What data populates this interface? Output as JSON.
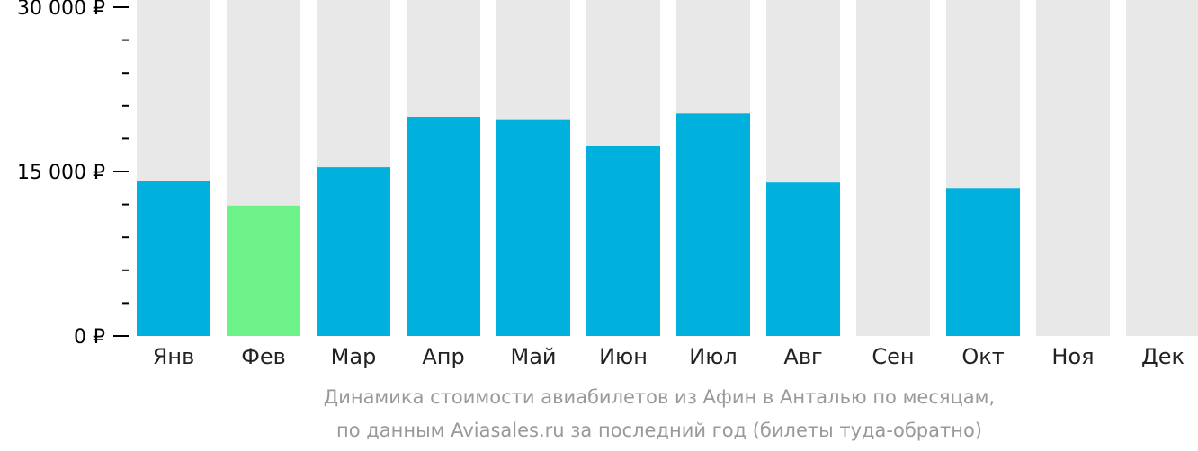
{
  "chart_data": {
    "type": "bar",
    "categories": [
      "Янв",
      "Фев",
      "Мар",
      "Апр",
      "Май",
      "Июн",
      "Июл",
      "Авг",
      "Сен",
      "Окт",
      "Ноя",
      "Дек"
    ],
    "values": [
      14100,
      11900,
      15400,
      20000,
      19700,
      17300,
      20300,
      14000,
      null,
      13500,
      null,
      null
    ],
    "highlight": [
      "normal",
      "lowest",
      "normal",
      "normal",
      "normal",
      "normal",
      "normal",
      "normal",
      "normal",
      "normal",
      "normal",
      "normal"
    ],
    "ylim": [
      0,
      30000
    ],
    "yticks": [
      0,
      15000,
      30000
    ],
    "ytick_labels": [
      "0 ₽",
      "15 000 ₽",
      "30 000 ₽"
    ],
    "minor_ticks_between_majors": 4,
    "title": "",
    "xlabel": "",
    "ylabel": "",
    "caption_lines": [
      "Динамика стоимости авиабилетов из Афин в Анталью по месяцам,",
      "по данным Aviasales.ru за последний год (билеты туда-обратно)"
    ],
    "colors": {
      "bar": "#00b0dd",
      "bar_lowest": "#6df28a",
      "background_bar": "#e8e8e8",
      "axis": "#000000",
      "caption": "#999999"
    }
  }
}
